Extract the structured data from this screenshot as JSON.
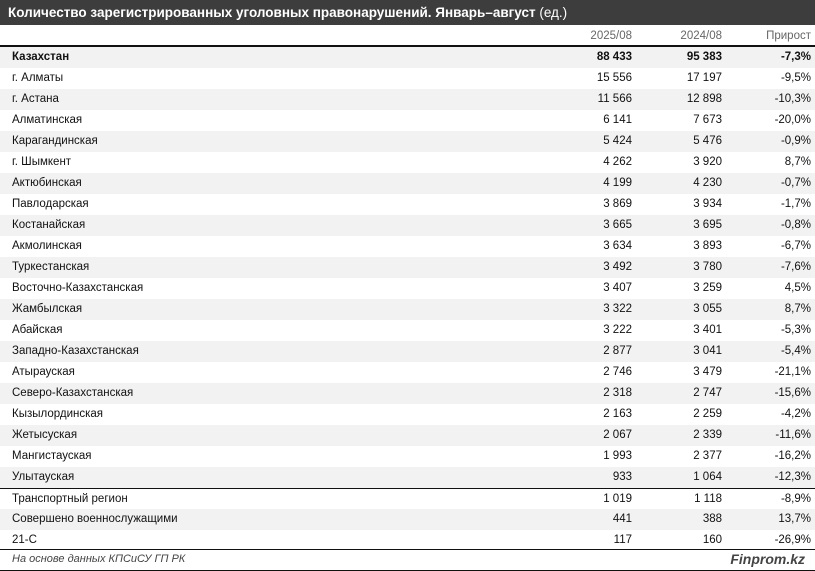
{
  "title": "Количество зарегистрированных уголовных правонарушений. Январь–август",
  "unit": "(ед.)",
  "columns": [
    "",
    "2025/08",
    "2024/08",
    "Прирост"
  ],
  "rows": [
    [
      "Казахстан",
      "88 433",
      "95 383",
      "-7,3%"
    ],
    [
      "г. Алматы",
      "15 556",
      "17 197",
      "-9,5%"
    ],
    [
      "г. Астана",
      "11 566",
      "12 898",
      "-10,3%"
    ],
    [
      "Алматинская",
      "6 141",
      "7 673",
      "-20,0%"
    ],
    [
      "Карагандинская",
      "5 424",
      "5 476",
      "-0,9%"
    ],
    [
      "г. Шымкент",
      "4 262",
      "3 920",
      "8,7%"
    ],
    [
      "Актюбинская",
      "4 199",
      "4 230",
      "-0,7%"
    ],
    [
      "Павлодарская",
      "3 869",
      "3 934",
      "-1,7%"
    ],
    [
      "Костанайская",
      "3 665",
      "3 695",
      "-0,8%"
    ],
    [
      "Акмолинская",
      "3 634",
      "3 893",
      "-6,7%"
    ],
    [
      "Туркестанская",
      "3 492",
      "3 780",
      "-7,6%"
    ],
    [
      "Восточно-Казахстанская",
      "3 407",
      "3 259",
      "4,5%"
    ],
    [
      "Жамбылская",
      "3 322",
      "3 055",
      "8,7%"
    ],
    [
      "Абайская",
      "3 222",
      "3 401",
      "-5,3%"
    ],
    [
      "Западно-Казахстанская",
      "2 877",
      "3 041",
      "-5,4%"
    ],
    [
      "Атырауская",
      "2 746",
      "3 479",
      "-21,1%"
    ],
    [
      "Северо-Казахстанская",
      "2 318",
      "2 747",
      "-15,6%"
    ],
    [
      "Кызылординская",
      "2 163",
      "2 259",
      "-4,2%"
    ],
    [
      "Жетысуская",
      "2 067",
      "2 339",
      "-11,6%"
    ],
    [
      "Мангистауская",
      "1 993",
      "2 377",
      "-16,2%"
    ],
    [
      "Улытауская",
      "933",
      "1 064",
      "-12,3%"
    ],
    [
      "Транспортный регион",
      "1 019",
      "1 118",
      "-8,9%"
    ],
    [
      "Совершено военнослужащими",
      "441",
      "388",
      "13,7%"
    ],
    [
      "21-С",
      "117",
      "160",
      "-26,9%"
    ]
  ],
  "footer": {
    "source": "На основе данных КПСиСУ ГП РК",
    "logo": "Finprom.kz"
  },
  "colors": {
    "title_bg": "#3d3d3d",
    "row_shade": "#f2f2f2"
  }
}
